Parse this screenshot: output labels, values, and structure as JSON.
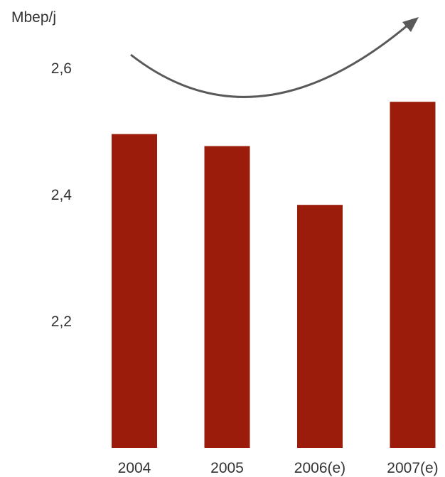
{
  "chart_data": {
    "type": "bar",
    "title": "",
    "unit_label": "Mbep/j",
    "xlabel": "",
    "ylabel": "",
    "categories": [
      "2004",
      "2005",
      "2006(e)",
      "2007(e)"
    ],
    "values": [
      2.496,
      2.477,
      2.384,
      2.547
    ],
    "y_ticks": [
      {
        "value": 2.2,
        "label": "2,2"
      },
      {
        "value": 2.4,
        "label": "2,4"
      },
      {
        "value": 2.6,
        "label": "2,6"
      }
    ],
    "ylim": [
      2.0,
      2.7
    ],
    "grid": false,
    "legend": "none",
    "bar_color": "#9b1c0a",
    "trend_arrow": {
      "direction": "up",
      "color": "#595959"
    }
  }
}
